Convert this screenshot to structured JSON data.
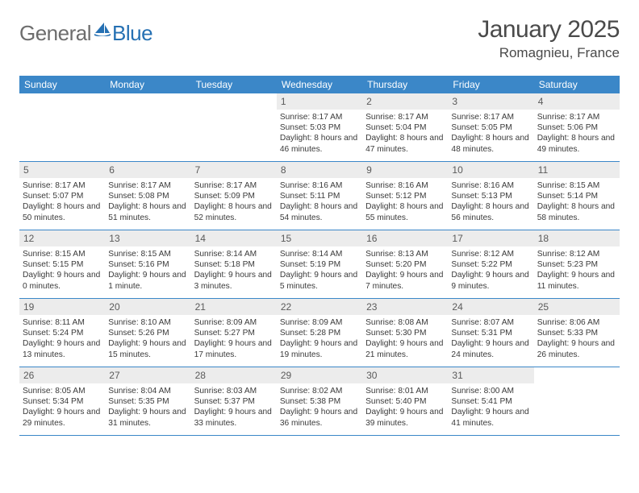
{
  "brand": {
    "text_a": "General",
    "text_b": "Blue",
    "text_color": "#6d6d6d",
    "accent_color": "#2570b3"
  },
  "title": "January 2025",
  "location": "Romagnieu, France",
  "colors": {
    "header_bg": "#3b87c8",
    "header_text": "#ffffff",
    "daynum_bg": "#ececec",
    "row_border": "#3b87c8",
    "body_text": "#3a3a3a",
    "page_bg": "#ffffff"
  },
  "day_names": [
    "Sunday",
    "Monday",
    "Tuesday",
    "Wednesday",
    "Thursday",
    "Friday",
    "Saturday"
  ],
  "weeks": [
    [
      {
        "n": "",
        "sr": "",
        "ss": "",
        "dl": ""
      },
      {
        "n": "",
        "sr": "",
        "ss": "",
        "dl": ""
      },
      {
        "n": "",
        "sr": "",
        "ss": "",
        "dl": ""
      },
      {
        "n": "1",
        "sr": "8:17 AM",
        "ss": "5:03 PM",
        "dl": "8 hours and 46 minutes."
      },
      {
        "n": "2",
        "sr": "8:17 AM",
        "ss": "5:04 PM",
        "dl": "8 hours and 47 minutes."
      },
      {
        "n": "3",
        "sr": "8:17 AM",
        "ss": "5:05 PM",
        "dl": "8 hours and 48 minutes."
      },
      {
        "n": "4",
        "sr": "8:17 AM",
        "ss": "5:06 PM",
        "dl": "8 hours and 49 minutes."
      }
    ],
    [
      {
        "n": "5",
        "sr": "8:17 AM",
        "ss": "5:07 PM",
        "dl": "8 hours and 50 minutes."
      },
      {
        "n": "6",
        "sr": "8:17 AM",
        "ss": "5:08 PM",
        "dl": "8 hours and 51 minutes."
      },
      {
        "n": "7",
        "sr": "8:17 AM",
        "ss": "5:09 PM",
        "dl": "8 hours and 52 minutes."
      },
      {
        "n": "8",
        "sr": "8:16 AM",
        "ss": "5:11 PM",
        "dl": "8 hours and 54 minutes."
      },
      {
        "n": "9",
        "sr": "8:16 AM",
        "ss": "5:12 PM",
        "dl": "8 hours and 55 minutes."
      },
      {
        "n": "10",
        "sr": "8:16 AM",
        "ss": "5:13 PM",
        "dl": "8 hours and 56 minutes."
      },
      {
        "n": "11",
        "sr": "8:15 AM",
        "ss": "5:14 PM",
        "dl": "8 hours and 58 minutes."
      }
    ],
    [
      {
        "n": "12",
        "sr": "8:15 AM",
        "ss": "5:15 PM",
        "dl": "9 hours and 0 minutes."
      },
      {
        "n": "13",
        "sr": "8:15 AM",
        "ss": "5:16 PM",
        "dl": "9 hours and 1 minute."
      },
      {
        "n": "14",
        "sr": "8:14 AM",
        "ss": "5:18 PM",
        "dl": "9 hours and 3 minutes."
      },
      {
        "n": "15",
        "sr": "8:14 AM",
        "ss": "5:19 PM",
        "dl": "9 hours and 5 minutes."
      },
      {
        "n": "16",
        "sr": "8:13 AM",
        "ss": "5:20 PM",
        "dl": "9 hours and 7 minutes."
      },
      {
        "n": "17",
        "sr": "8:12 AM",
        "ss": "5:22 PM",
        "dl": "9 hours and 9 minutes."
      },
      {
        "n": "18",
        "sr": "8:12 AM",
        "ss": "5:23 PM",
        "dl": "9 hours and 11 minutes."
      }
    ],
    [
      {
        "n": "19",
        "sr": "8:11 AM",
        "ss": "5:24 PM",
        "dl": "9 hours and 13 minutes."
      },
      {
        "n": "20",
        "sr": "8:10 AM",
        "ss": "5:26 PM",
        "dl": "9 hours and 15 minutes."
      },
      {
        "n": "21",
        "sr": "8:09 AM",
        "ss": "5:27 PM",
        "dl": "9 hours and 17 minutes."
      },
      {
        "n": "22",
        "sr": "8:09 AM",
        "ss": "5:28 PM",
        "dl": "9 hours and 19 minutes."
      },
      {
        "n": "23",
        "sr": "8:08 AM",
        "ss": "5:30 PM",
        "dl": "9 hours and 21 minutes."
      },
      {
        "n": "24",
        "sr": "8:07 AM",
        "ss": "5:31 PM",
        "dl": "9 hours and 24 minutes."
      },
      {
        "n": "25",
        "sr": "8:06 AM",
        "ss": "5:33 PM",
        "dl": "9 hours and 26 minutes."
      }
    ],
    [
      {
        "n": "26",
        "sr": "8:05 AM",
        "ss": "5:34 PM",
        "dl": "9 hours and 29 minutes."
      },
      {
        "n": "27",
        "sr": "8:04 AM",
        "ss": "5:35 PM",
        "dl": "9 hours and 31 minutes."
      },
      {
        "n": "28",
        "sr": "8:03 AM",
        "ss": "5:37 PM",
        "dl": "9 hours and 33 minutes."
      },
      {
        "n": "29",
        "sr": "8:02 AM",
        "ss": "5:38 PM",
        "dl": "9 hours and 36 minutes."
      },
      {
        "n": "30",
        "sr": "8:01 AM",
        "ss": "5:40 PM",
        "dl": "9 hours and 39 minutes."
      },
      {
        "n": "31",
        "sr": "8:00 AM",
        "ss": "5:41 PM",
        "dl": "9 hours and 41 minutes."
      },
      {
        "n": "",
        "sr": "",
        "ss": "",
        "dl": ""
      }
    ]
  ],
  "labels": {
    "sunrise": "Sunrise:",
    "sunset": "Sunset:",
    "daylight": "Daylight:"
  }
}
